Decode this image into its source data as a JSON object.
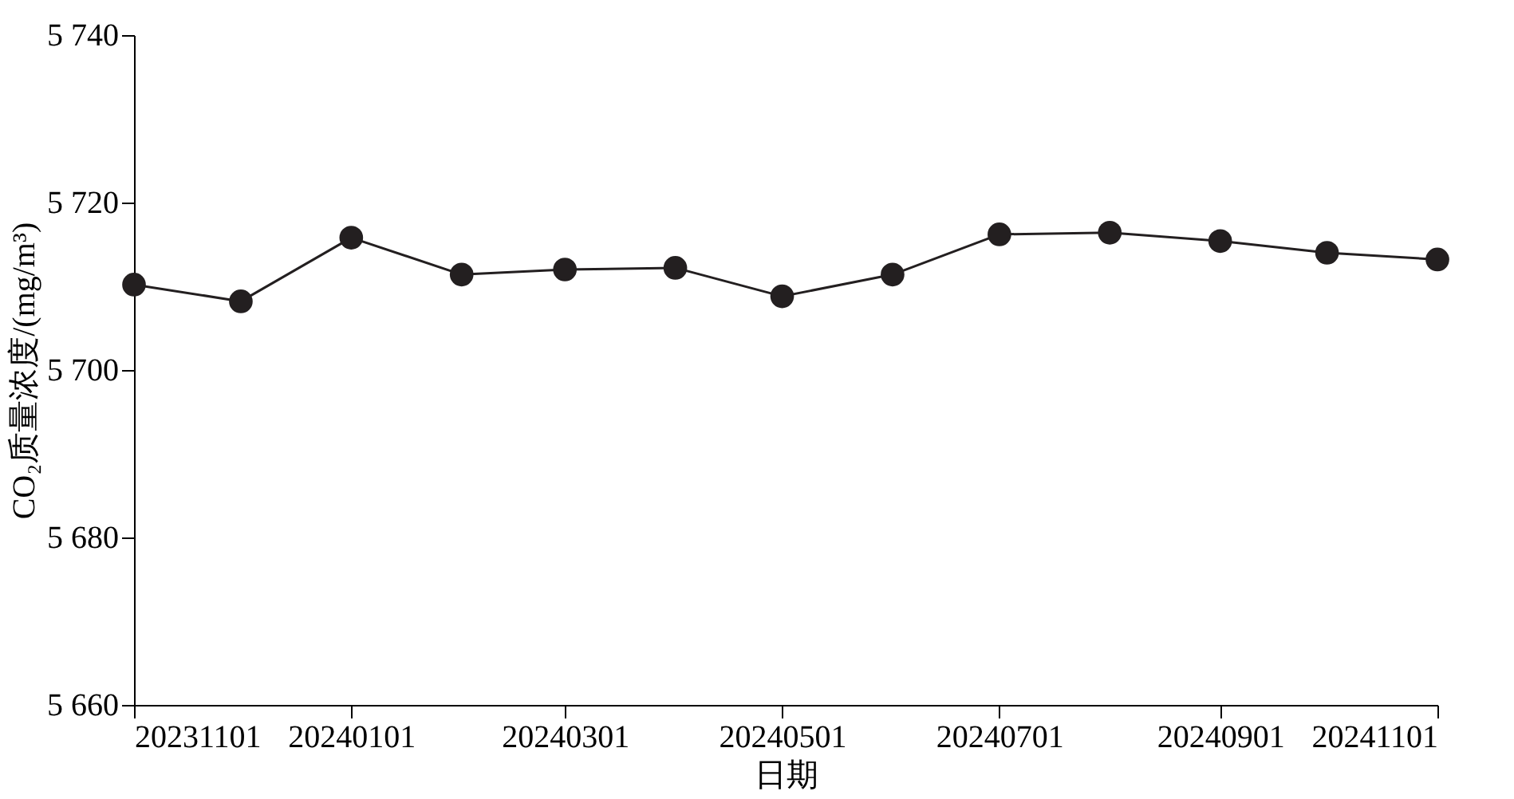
{
  "chart_data": {
    "type": "line",
    "xlabel": "日期",
    "ylabel": "CO₂质量浓度/(mg/m³)",
    "x": [
      "2023-11-01",
      "2023-12-01",
      "2024-01-01",
      "2024-02-01",
      "2024-03-01",
      "2024-04-01",
      "2024-05-01",
      "2024-06-01",
      "2024-07-01",
      "2024-08-01",
      "2024-09-01",
      "2024-10-01",
      "2024-11-01"
    ],
    "series": [
      {
        "color": "#231f20",
        "values": [
          5710.2,
          5708.2,
          5715.8,
          5711.4,
          5712.0,
          5712.2,
          5708.8,
          5711.4,
          5716.2,
          5716.4,
          5715.4,
          5714.0,
          5713.2
        ]
      }
    ],
    "xlim": [
      "2023-11-01",
      "2024-11-01"
    ],
    "xticks": [
      {
        "value": "2023-11-01",
        "label": "20231101"
      },
      {
        "value": "2024-01-01",
        "label": "20240101"
      },
      {
        "value": "2024-03-01",
        "label": "20240301"
      },
      {
        "value": "2024-05-01",
        "label": "20240501"
      },
      {
        "value": "2024-07-01",
        "label": "20240701"
      },
      {
        "value": "2024-09-01",
        "label": "20240901"
      },
      {
        "value": "2024-11-01",
        "label": "20241101"
      }
    ],
    "ylim": [
      5660,
      5740
    ],
    "yticks": [
      {
        "value": 5660,
        "label": "5 660"
      },
      {
        "value": 5680,
        "label": "5 680"
      },
      {
        "value": 5700,
        "label": "5 700"
      },
      {
        "value": 5720,
        "label": "5 720"
      },
      {
        "value": 5740,
        "label": "5 740"
      }
    ],
    "grid": false,
    "marker": "circle",
    "line_style": "solid"
  }
}
